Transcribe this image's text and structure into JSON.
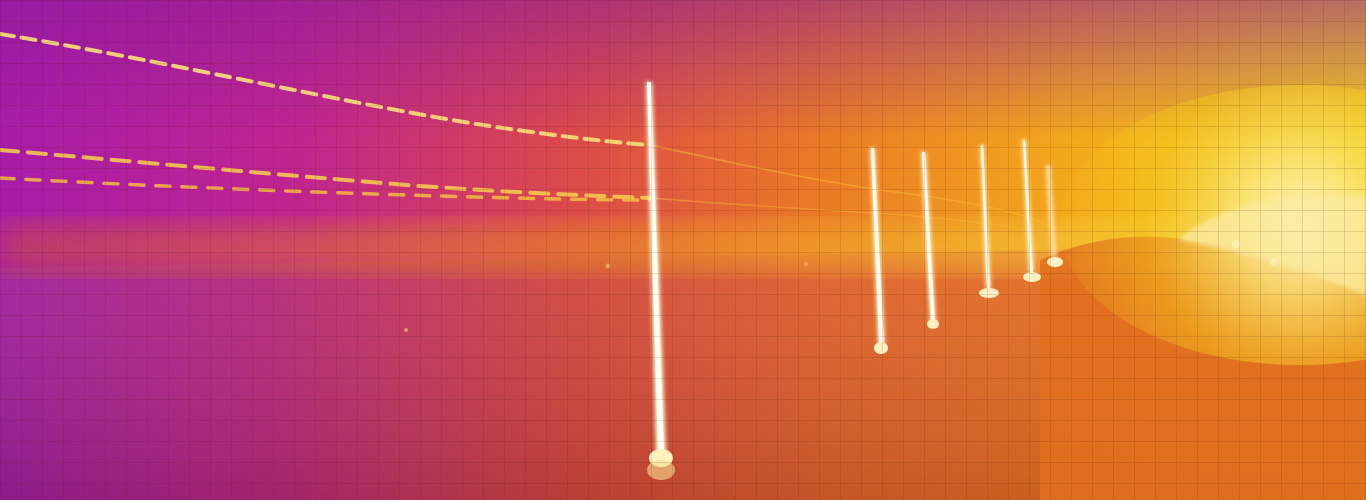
{
  "image": {
    "kind": "thermal-camera-frame",
    "palette": "ironbow",
    "palette_colors": {
      "cold": "#9a1aa6",
      "cool": "#c42b85",
      "mid": "#e05a2a",
      "warm": "#f08a1a",
      "hot": "#f5c81a",
      "hottest": "#fbf2a0",
      "grid_line": "#5a2a1a"
    },
    "subjects": [
      "utility-poles",
      "overhead-power-lines",
      "ground",
      "hot-horizon-glow"
    ],
    "overlay": "measurement-grid"
  }
}
